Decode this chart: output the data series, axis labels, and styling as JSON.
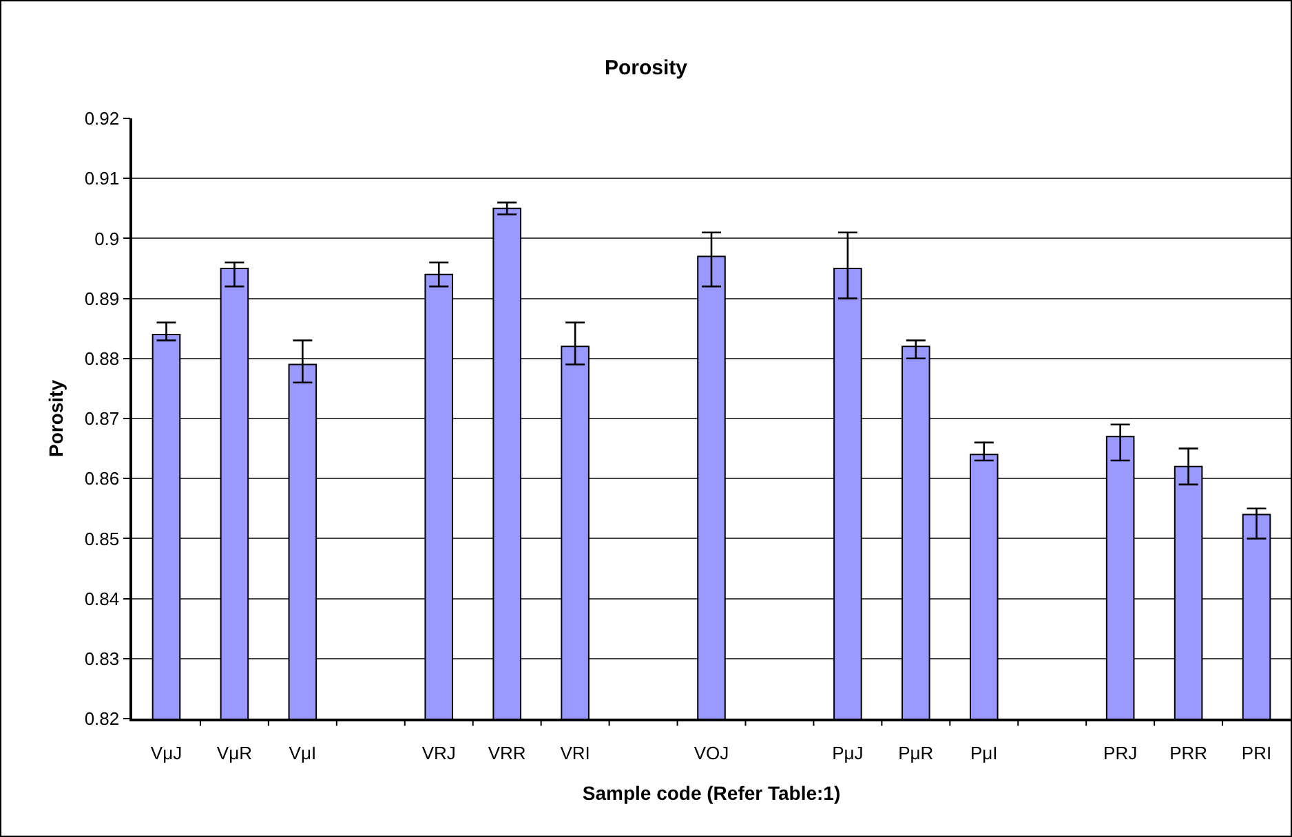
{
  "chart_data": {
    "type": "bar",
    "title": "Porosity",
    "xlabel": "Sample code (Refer Table:1)",
    "ylabel": "Porosity",
    "categories": [
      "VμJ",
      "VμR",
      "VμI",
      null,
      "VRJ",
      "VRR",
      "VRI",
      null,
      "VOJ",
      null,
      "PμJ",
      "PμR",
      "PμI",
      null,
      "PRJ",
      "PRR",
      "PRI"
    ],
    "values": [
      0.884,
      0.895,
      0.879,
      null,
      0.894,
      0.905,
      0.882,
      null,
      0.897,
      null,
      0.895,
      0.882,
      0.864,
      null,
      0.867,
      0.862,
      0.854
    ],
    "errors": [
      [
        0.883,
        0.886
      ],
      [
        0.892,
        0.896
      ],
      [
        0.876,
        0.883
      ],
      null,
      [
        0.892,
        0.896
      ],
      [
        0.904,
        0.906
      ],
      [
        0.879,
        0.886
      ],
      null,
      [
        0.892,
        0.901
      ],
      null,
      [
        0.89,
        0.901
      ],
      [
        0.88,
        0.883
      ],
      [
        0.863,
        0.866
      ],
      null,
      [
        0.863,
        0.869
      ],
      [
        0.859,
        0.865
      ],
      [
        0.85,
        0.855
      ]
    ],
    "color": "#9999ff",
    "ylim": [
      0.82,
      0.92
    ],
    "yticks": [
      0.82,
      0.83,
      0.84,
      0.85,
      0.86,
      0.87,
      0.88,
      0.89,
      {
        "value": 0.9,
        "label": "0.9"
      },
      0.91,
      0.92
    ],
    "grid": "y",
    "legend": false
  }
}
